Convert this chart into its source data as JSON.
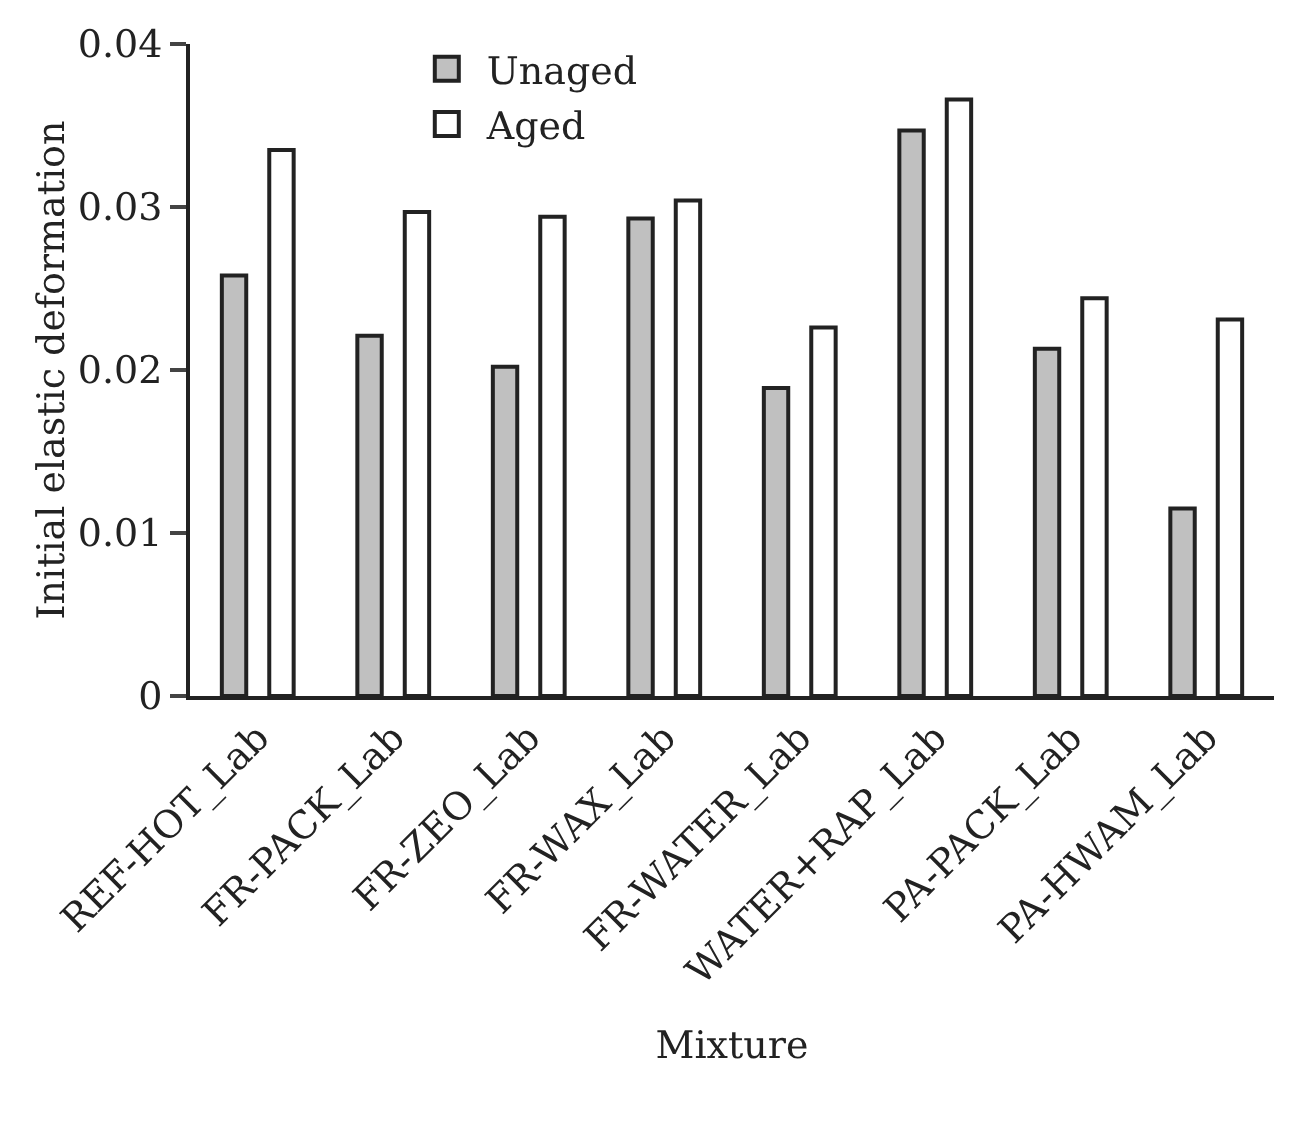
{
  "chart_data": {
    "type": "bar",
    "xlabel": "Mixture",
    "ylabel": "Initial elastic deformation",
    "categories": [
      "REF-HOT_Lab",
      "FR-PACK_Lab",
      "FR-ZEO_Lab",
      "FR-WAX_Lab",
      "FR-WATER_Lab",
      "WATER+RAP_Lab",
      "PA-PACK_Lab",
      "PA-HWAM_Lab"
    ],
    "series": [
      {
        "name": "Unaged",
        "color": "#c0c0c0",
        "values": [
          0.0258,
          0.0221,
          0.0202,
          0.0293,
          0.0189,
          0.0347,
          0.0213,
          0.0115
        ]
      },
      {
        "name": "Aged",
        "color": "#ffffff",
        "values": [
          0.0335,
          0.0297,
          0.0294,
          0.0304,
          0.0226,
          0.0366,
          0.0244,
          0.0231
        ]
      }
    ],
    "ylim": [
      0,
      0.04
    ],
    "yticks": [
      {
        "value": 0,
        "label": "0"
      },
      0.01,
      0.02,
      0.03,
      0.04
    ],
    "grid": false,
    "legend": "top left"
  }
}
